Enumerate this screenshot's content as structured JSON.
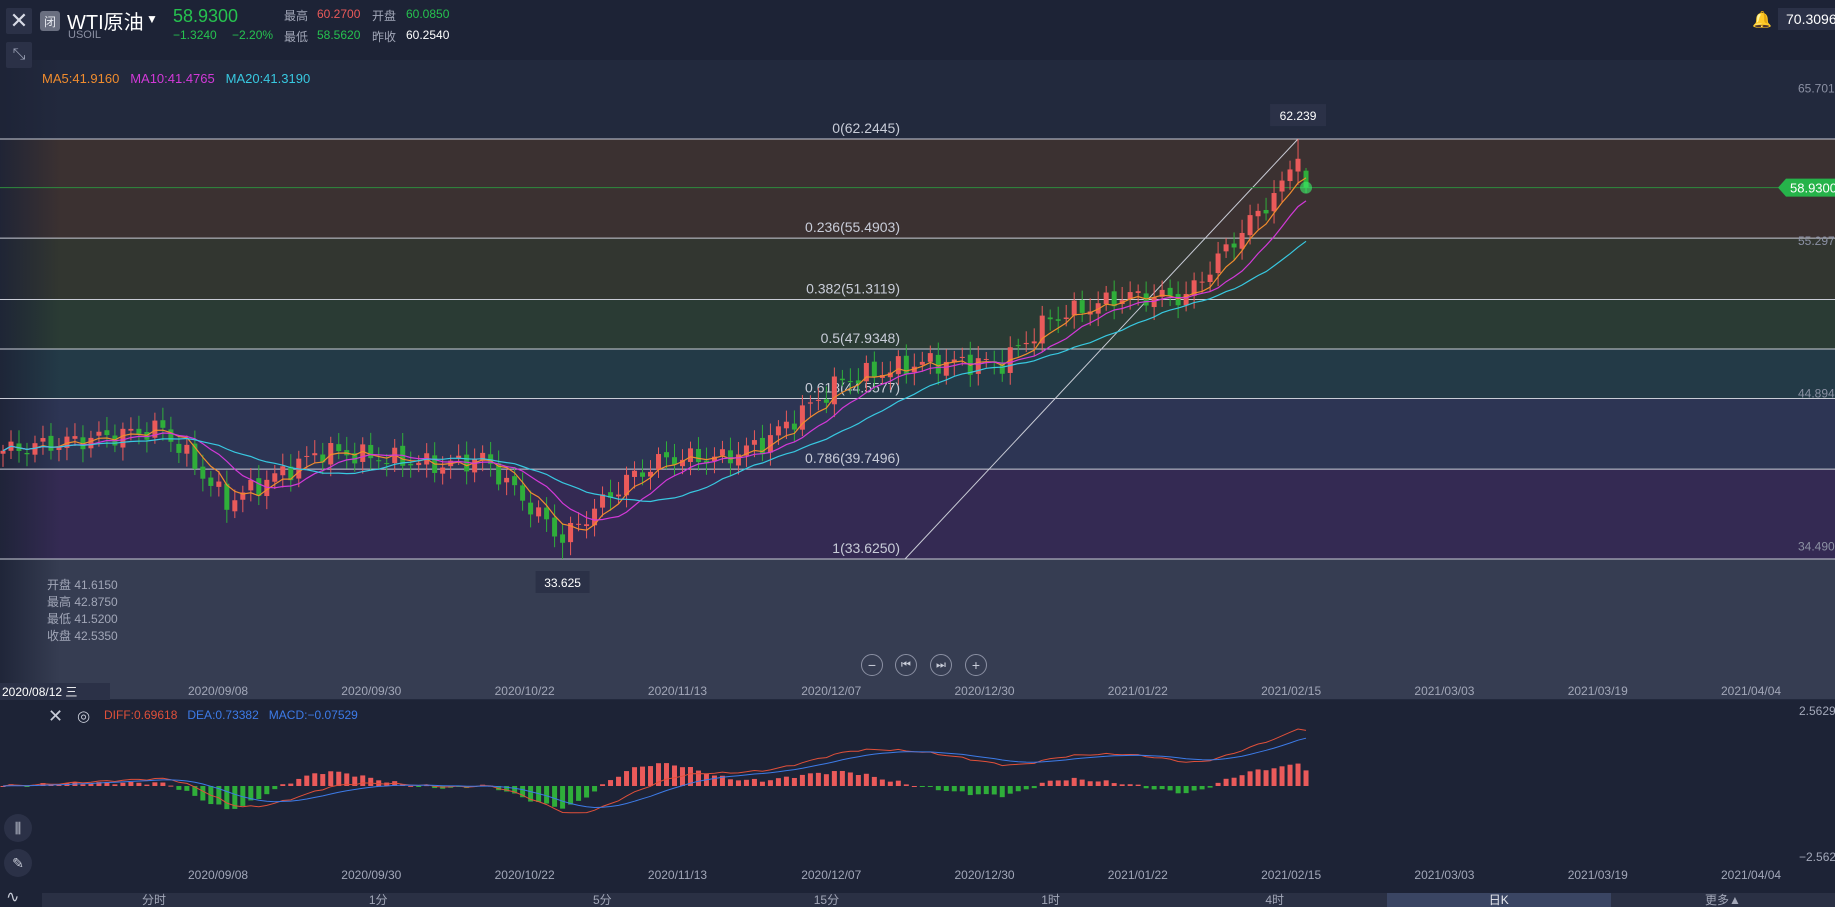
{
  "header": {
    "status_badge": "闭",
    "symbol_name": "WTI原油",
    "symbol_code": "USOIL",
    "last_price": "58.9300",
    "change": "−1.3240",
    "change_pct": "−2.20%",
    "high_label": "最高",
    "high_value": "60.2700",
    "open_label": "开盘",
    "open_value": "60.0850",
    "low_label": "最低",
    "low_value": "58.5620",
    "prev_close_label": "昨收",
    "prev_close_value": "60.2540",
    "top_right_price": "70.3096"
  },
  "ma_legend": {
    "ma5": "MA5:41.9160",
    "ma10": "MA10:41.4765",
    "ma20": "MA20:41.3190",
    "colors": {
      "ma5": "#f08c2e",
      "ma10": "#d239d8",
      "ma20": "#38c8e0"
    }
  },
  "ohlc_info": {
    "open": "开盘 41.6150",
    "high": "最高 42.8750",
    "low": "最低 41.5200",
    "close": "收盘 42.5350"
  },
  "fib_levels": [
    {
      "label": "0(62.2445)",
      "value": 62.2445
    },
    {
      "label": "0.236(55.4903)",
      "value": 55.4903
    },
    {
      "label": "0.382(51.3119)",
      "value": 51.3119
    },
    {
      "label": "0.5(47.9348)",
      "value": 47.9348
    },
    {
      "label": "0.618(44.5577)",
      "value": 44.5577
    },
    {
      "label": "0.786(39.7496)",
      "value": 39.7496
    },
    {
      "label": "1(33.6250)",
      "value": 33.625
    }
  ],
  "fib_colors": [
    "#3b3131",
    "#323630",
    "#2a3b34",
    "#233a47",
    "#2d3554",
    "#342a53"
  ],
  "price_axis": [
    {
      "label": "65.701",
      "value": 65.701
    },
    {
      "label": "55.297",
      "value": 55.297
    },
    {
      "label": "44.894",
      "value": 44.894
    },
    {
      "label": "34.490",
      "value": 34.49
    }
  ],
  "current_price_tag": "58.9300",
  "high_marker": "62.239",
  "low_marker": "33.625",
  "date_badge": "2020/08/12 三",
  "x_ticks": [
    "2020/09/08",
    "2020/09/30",
    "2020/10/22",
    "2020/11/13",
    "2020/12/07",
    "2020/12/30",
    "2021/01/22",
    "2021/02/15",
    "2021/03/03",
    "2021/03/19",
    "2021/04/04"
  ],
  "zoom_controls": {
    "zoom_out": "−",
    "prev": "⏮",
    "next": "⏭",
    "zoom_in": "+"
  },
  "macd": {
    "diff": "DIFF:0.69618",
    "dea": "DEA:0.73382",
    "macd": "MACD:−0.07529",
    "max": "2.5629",
    "min": "−2.5629",
    "colors": {
      "diff": "#e0503a",
      "dea": "#3d7be8",
      "up": "#ea5a5a",
      "down": "#2fae3a"
    }
  },
  "tabs": [
    "分时",
    "1分",
    "5分",
    "15分",
    "1时",
    "4时",
    "日K",
    "更多▲"
  ],
  "active_tab": "日K",
  "chart_data": {
    "type": "candlestick",
    "x": [
      "2020/09/08",
      "2020/09/30",
      "2020/10/22",
      "2020/11/13",
      "2020/12/07",
      "2020/12/30",
      "2021/01/22",
      "2021/02/15"
    ],
    "close_approx": [
      37.0,
      40.0,
      35.5,
      41.5,
      45.5,
      48.0,
      52.0,
      59.5
    ],
    "ylim": [
      33.0,
      66.0
    ],
    "last_close": 58.93,
    "period_high": 62.239,
    "period_low": 33.625
  }
}
